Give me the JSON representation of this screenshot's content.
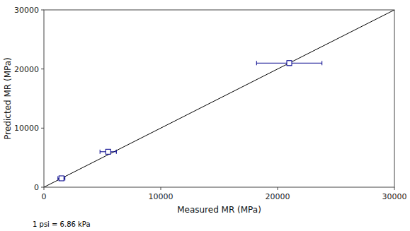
{
  "chart_data": {
    "type": "scatter",
    "xlabel": "Measured MR (MPa)",
    "ylabel": "Predicted MR (MPa)",
    "annotations": [
      {
        "text": "1 psi = 6.86 kPa"
      }
    ],
    "xlim": [
      0,
      30000
    ],
    "ylim": [
      0,
      30000
    ],
    "xticks": [
      0,
      10000,
      20000,
      30000
    ],
    "yticks": [
      0,
      10000,
      20000,
      30000
    ],
    "grid": false,
    "series": [
      {
        "type": "line",
        "color": "#000000",
        "line_style": "solid",
        "x": [
          0,
          30000
        ],
        "values": [
          0,
          30000
        ]
      },
      {
        "type": "scatter",
        "color": "#00008B",
        "marker": "open-square",
        "x": [
          1500,
          5500,
          21000
        ],
        "values": [
          1500,
          6000,
          21000
        ],
        "x_err": [
          300,
          700,
          2800
        ],
        "y_err": [
          150,
          250,
          400
        ]
      }
    ]
  }
}
